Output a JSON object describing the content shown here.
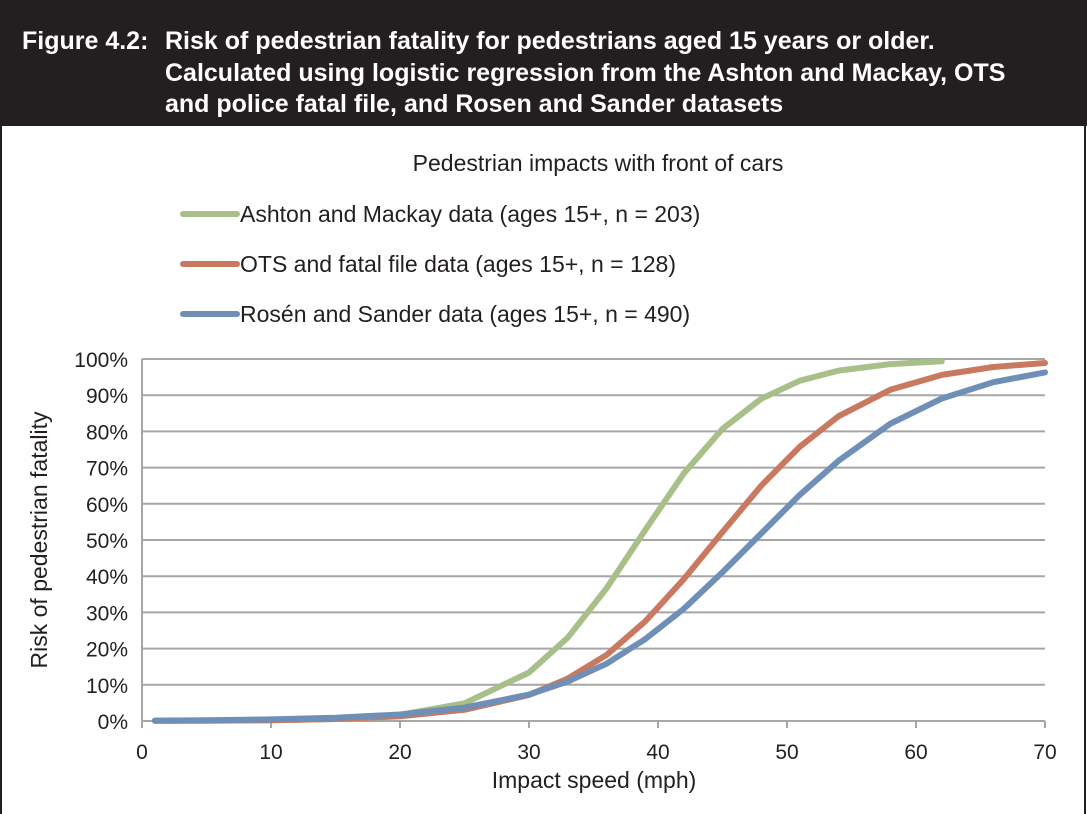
{
  "chart_data": {
    "type": "line",
    "figure_label": "Figure 4.2:",
    "title": [
      "Risk of pedestrian fatality for pedestrians aged 15 years or older.",
      "Calculated using logistic regression from the Ashton and Mackay, OTS",
      "and police fatal file, and Rosen and Sander datasets"
    ],
    "subtitle": "Pedestrian impacts with front of cars",
    "x_label": "Impact speed (mph)",
    "y_label": "Risk of pedestrian fatality",
    "xlim": [
      0,
      70
    ],
    "xticks": [
      0,
      10,
      20,
      30,
      40,
      50,
      60,
      70
    ],
    "ylim": [
      0,
      100
    ],
    "yticks": [
      {
        "value": 0,
        "label": "0%"
      },
      {
        "value": 10,
        "label": "10%"
      },
      {
        "value": 20,
        "label": "20%"
      },
      {
        "value": 30,
        "label": "30%"
      },
      {
        "value": 40,
        "label": "40%"
      },
      {
        "value": 50,
        "label": "50%"
      },
      {
        "value": 60,
        "label": "60%"
      },
      {
        "value": 70,
        "label": "70%"
      },
      {
        "value": 80,
        "label": "80%"
      },
      {
        "value": 90,
        "label": "90%"
      },
      {
        "value": 100,
        "label": "100%"
      }
    ],
    "grid": true,
    "series": [
      {
        "name": "Ashton and Mackay data (ages 15+, n = 203)",
        "color": "#a9bf8a",
        "x": [
          1,
          5,
          10,
          15,
          20,
          25,
          30,
          33,
          36,
          39,
          42,
          45,
          48,
          51,
          54,
          58,
          62
        ],
        "values": [
          0.03,
          0.06,
          0.19,
          0.56,
          1.7,
          4.9,
          13.4,
          23.0,
          36.6,
          52.7,
          68.4,
          80.7,
          89.0,
          94.0,
          96.8,
          98.6,
          99.4
        ]
      },
      {
        "name": "OTS and fatal file data (ages 15+, n = 128)",
        "color": "#c8795f",
        "x": [
          1,
          5,
          10,
          15,
          20,
          25,
          30,
          33,
          36,
          39,
          42,
          45,
          48,
          51,
          54,
          58,
          62,
          66,
          70
        ],
        "values": [
          0.05,
          0.1,
          0.23,
          0.56,
          1.3,
          3.1,
          7.2,
          11.7,
          18.2,
          27.5,
          39.2,
          52.2,
          65.0,
          75.8,
          84.2,
          91.5,
          95.6,
          97.8,
          98.9
        ]
      },
      {
        "name": "Rosén and Sander data (ages 15+, n = 490)",
        "color": "#6f8fb6",
        "x": [
          1,
          5,
          10,
          15,
          20,
          25,
          30,
          33,
          36,
          39,
          42,
          45,
          48,
          51,
          54,
          58,
          62,
          66,
          70
        ],
        "values": [
          0.12,
          0.21,
          0.43,
          0.89,
          1.8,
          3.7,
          7.3,
          10.9,
          15.8,
          22.6,
          31.0,
          41.1,
          51.8,
          62.5,
          71.9,
          82.1,
          89.1,
          93.6,
          96.3
        ]
      }
    ]
  }
}
